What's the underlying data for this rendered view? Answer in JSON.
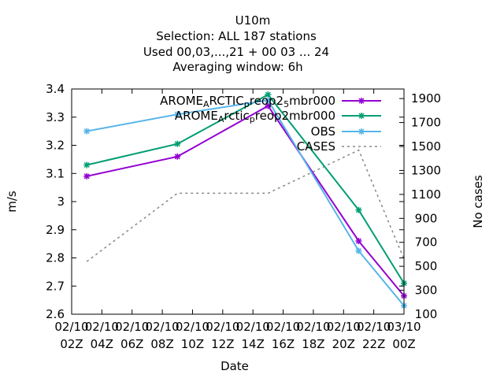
{
  "chart_data": {
    "type": "line",
    "title_lines": [
      "U10m",
      "Selection: ALL     187 stations",
      "Used  00,03,...,21  + 00 03 ... 24",
      "Averaging window:  6h"
    ],
    "xlabel": "Date",
    "ylabel": "m/s",
    "y2label": "No cases",
    "x_ticks": [
      [
        "02/10",
        "02Z"
      ],
      [
        "02/10",
        "04Z"
      ],
      [
        "02/10",
        "06Z"
      ],
      [
        "02/10",
        "08Z"
      ],
      [
        "02/10",
        "10Z"
      ],
      [
        "02/10",
        "12Z"
      ],
      [
        "02/10",
        "14Z"
      ],
      [
        "02/10",
        "16Z"
      ],
      [
        "02/10",
        "18Z"
      ],
      [
        "02/10",
        "20Z"
      ],
      [
        "02/10",
        "22Z"
      ],
      [
        "03/10",
        "00Z"
      ]
    ],
    "xlim": [
      "2024-10-02T02:00",
      "2024-10-03T00:00"
    ],
    "ylim": [
      2.6,
      3.4
    ],
    "yticks": [
      "2.6",
      "2.7",
      "2.8",
      "2.9",
      "3",
      "3.1",
      "3.2",
      "3.3",
      "3.4"
    ],
    "y2lim": [
      100,
      1980
    ],
    "y2ticks": [
      "100",
      "300",
      "500",
      "700",
      "900",
      "1100",
      "1300",
      "1500",
      "1700",
      "1900"
    ],
    "legend_position": "top-right",
    "series": [
      {
        "name": "AROME_ARCTIC_reop2_5mbr000",
        "name_parts": [
          [
            "AROME",
            ""
          ],
          [
            "A",
            "sub"
          ],
          [
            "RCTIC",
            ""
          ],
          [
            "p",
            "sub"
          ],
          [
            "reop2",
            ""
          ],
          [
            "5",
            "sub"
          ],
          [
            "mbr000",
            ""
          ]
        ],
        "color": "#9400d3",
        "axis": "y",
        "style": "solid",
        "marker": "star",
        "x": [
          "2024-10-02T03:00",
          "2024-10-02T09:00",
          "2024-10-02T15:00",
          "2024-10-02T21:00",
          "2024-10-03T00:00"
        ],
        "y": [
          3.09,
          3.16,
          3.34,
          2.86,
          2.665
        ]
      },
      {
        "name": "AROME_Arctic_reop2mbr000",
        "name_parts": [
          [
            "AROME",
            ""
          ],
          [
            "A",
            "sub"
          ],
          [
            "rctic",
            ""
          ],
          [
            "p",
            "sub"
          ],
          [
            "reop2mbr000",
            ""
          ]
        ],
        "color": "#009e73",
        "axis": "y",
        "style": "solid",
        "marker": "star",
        "x": [
          "2024-10-02T03:00",
          "2024-10-02T09:00",
          "2024-10-02T15:00",
          "2024-10-02T21:00",
          "2024-10-03T00:00"
        ],
        "y": [
          3.13,
          3.205,
          3.38,
          2.97,
          2.71
        ]
      },
      {
        "name": "OBS",
        "name_parts": [
          [
            "OBS",
            ""
          ]
        ],
        "color": "#56b4e9",
        "axis": "y",
        "style": "solid",
        "marker": "star",
        "x": [
          "2024-10-02T03:00",
          "2024-10-02T09:00",
          "2024-10-02T15:00",
          "2024-10-02T21:00",
          "2024-10-03T00:00"
        ],
        "y": [
          3.25,
          3.31,
          3.36,
          2.825,
          2.63
        ]
      },
      {
        "name": "CASES",
        "name_parts": [
          [
            "CASES",
            ""
          ]
        ],
        "color": "#888888",
        "axis": "y2",
        "style": "dashed",
        "marker": "none",
        "x": [
          "2024-10-02T03:00",
          "2024-10-02T09:00",
          "2024-10-02T15:00",
          "2024-10-02T21:00",
          "2024-10-03T00:00"
        ],
        "y": [
          540,
          1110,
          1110,
          1470,
          560
        ]
      }
    ]
  }
}
